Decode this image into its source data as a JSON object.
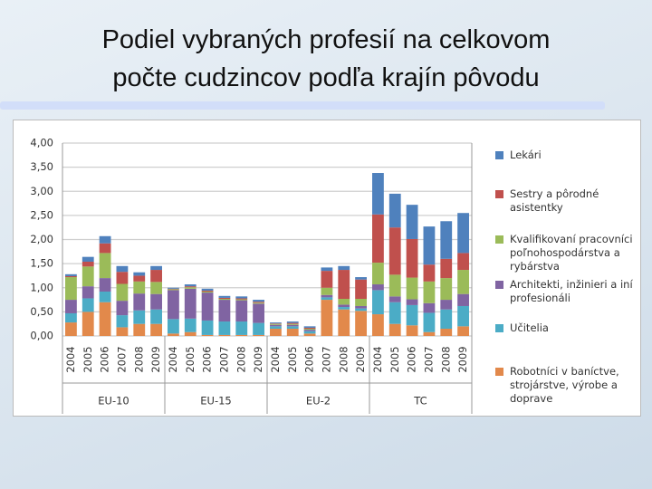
{
  "slide": {
    "title_lines": [
      "Podiel vybraných profesií na celkovom",
      "počte cudzincov podľa krajín pôvodu"
    ]
  },
  "chart_data": {
    "type": "bar",
    "stacked": true,
    "categories": [
      "2004",
      "2005",
      "2006",
      "2007",
      "2008",
      "2009",
      "2004",
      "2005",
      "2006",
      "2007",
      "2008",
      "2009",
      "2004",
      "2005",
      "2006",
      "2007",
      "2008",
      "2009",
      "2004",
      "2005",
      "2006",
      "2007",
      "2008",
      "2009"
    ],
    "group_labels": [
      "EU-10",
      "EU-15",
      "EU-2",
      "TC"
    ],
    "ylim": [
      0,
      4
    ],
    "yticks": [
      {
        "value": 0,
        "label": "0,00"
      },
      {
        "value": 0.5,
        "label": "0,50"
      },
      {
        "value": 1,
        "label": "1,00"
      },
      {
        "value": 1.5,
        "label": "1,50"
      },
      {
        "value": 2,
        "label": "2,00"
      },
      {
        "value": 2.5,
        "label": "2,50"
      },
      {
        "value": 3,
        "label": "3,00"
      },
      {
        "value": 3.5,
        "label": "3,50"
      },
      {
        "value": 4,
        "label": "4,00"
      }
    ],
    "grid": true,
    "legend": "right",
    "series": [
      {
        "name": "Robotníci v baníctve, strojárstve, výrobe a doprave",
        "color": "#e2894b",
        "values": [
          0.28,
          0.5,
          0.7,
          0.18,
          0.25,
          0.25,
          0.05,
          0.08,
          0.02,
          0.02,
          0.02,
          0.02,
          0.15,
          0.15,
          0.05,
          0.75,
          0.55,
          0.52,
          0.45,
          0.25,
          0.22,
          0.08,
          0.15,
          0.2
        ]
      },
      {
        "name": "Učitelia",
        "color": "#4bacc6",
        "values": [
          0.19,
          0.28,
          0.22,
          0.25,
          0.28,
          0.3,
          0.3,
          0.28,
          0.3,
          0.28,
          0.28,
          0.25,
          0.05,
          0.05,
          0.05,
          0.05,
          0.05,
          0.05,
          0.5,
          0.45,
          0.42,
          0.4,
          0.4,
          0.42
        ]
      },
      {
        "name": "Architekti, inžinieri a iní profesionáli",
        "color": "#8064a2",
        "values": [
          0.28,
          0.25,
          0.28,
          0.3,
          0.35,
          0.32,
          0.6,
          0.62,
          0.58,
          0.45,
          0.44,
          0.4,
          0.03,
          0.03,
          0.03,
          0.05,
          0.05,
          0.05,
          0.12,
          0.12,
          0.12,
          0.2,
          0.2,
          0.25
        ]
      },
      {
        "name": "Kvalifikovaní pracovníci poľnohospodárstva a rybárstva",
        "color": "#9bbb59",
        "values": [
          0.47,
          0.41,
          0.52,
          0.35,
          0.25,
          0.25,
          0.02,
          0.03,
          0.02,
          0.02,
          0.02,
          0.02,
          0.02,
          0.02,
          0.02,
          0.15,
          0.12,
          0.15,
          0.45,
          0.45,
          0.45,
          0.45,
          0.45,
          0.5
        ]
      },
      {
        "name": "Sestry a pôrodné asistentky",
        "color": "#c0504d",
        "values": [
          0.02,
          0.1,
          0.2,
          0.25,
          0.12,
          0.25,
          0.01,
          0.02,
          0.02,
          0.02,
          0.02,
          0.02,
          0.01,
          0.02,
          0.02,
          0.35,
          0.6,
          0.4,
          1.0,
          0.98,
          0.8,
          0.35,
          0.4,
          0.35
        ]
      },
      {
        "name": "Lekári",
        "color": "#4f81bd",
        "values": [
          0.04,
          0.1,
          0.15,
          0.12,
          0.07,
          0.08,
          0.02,
          0.04,
          0.04,
          0.04,
          0.04,
          0.04,
          0.02,
          0.03,
          0.03,
          0.07,
          0.08,
          0.05,
          0.86,
          0.7,
          0.71,
          0.79,
          0.78,
          0.83
        ]
      }
    ]
  }
}
